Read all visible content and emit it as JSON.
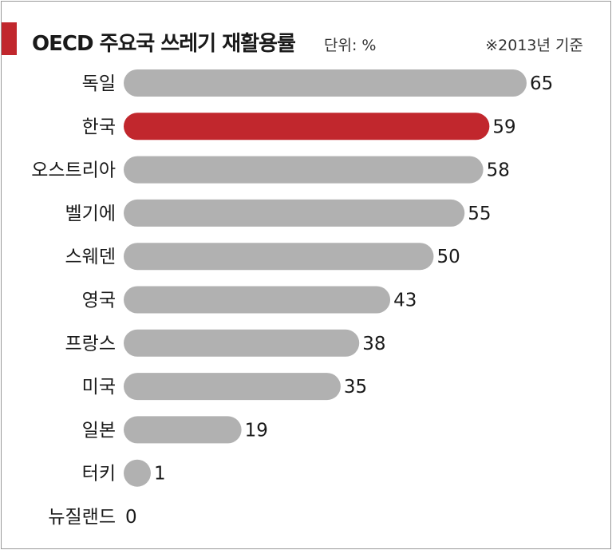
{
  "header": {
    "title": "OECD 주요국 쓰레기 재활용률",
    "unit": "단위: %",
    "note": "※2013년 기준"
  },
  "colors": {
    "accent": "#c1272d",
    "bar_default": "#b1b1b1",
    "bar_highlight": "#c1272d"
  },
  "chart_data": {
    "type": "bar",
    "orientation": "horizontal",
    "title": "OECD 주요국 쓰레기 재활용률",
    "unit": "단위: %",
    "categories": [
      "독일",
      "한국",
      "오스트리아",
      "벨기에",
      "스웨덴",
      "영국",
      "프랑스",
      "미국",
      "일본",
      "터키",
      "뉴질랜드"
    ],
    "values": [
      65,
      59,
      58,
      55,
      50,
      43,
      38,
      35,
      19,
      1,
      0
    ],
    "highlight": "한국",
    "xlim": [
      0,
      65
    ],
    "grid": false,
    "legend": "none"
  }
}
